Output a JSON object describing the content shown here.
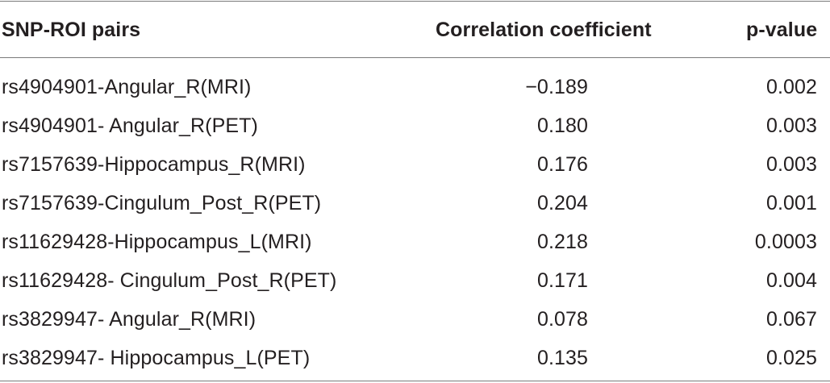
{
  "table": {
    "headers": {
      "pair": "SNP-ROI pairs",
      "correlation": "Correlation coefficient",
      "pvalue": "p-value"
    },
    "rows": [
      {
        "pair": "rs4904901-Angular_R(MRI)",
        "correlation": "−0.189",
        "pvalue": "0.002"
      },
      {
        "pair": "rs4904901- Angular_R(PET)",
        "correlation": "0.180",
        "pvalue": "0.003"
      },
      {
        "pair": "rs7157639-Hippocampus_R(MRI)",
        "correlation": "0.176",
        "pvalue": "0.003"
      },
      {
        "pair": "rs7157639-Cingulum_Post_R(PET)",
        "correlation": "0.204",
        "pvalue": "0.001"
      },
      {
        "pair": "rs11629428-Hippocampus_L(MRI)",
        "correlation": "0.218",
        "pvalue": "0.0003"
      },
      {
        "pair": "rs11629428- Cingulum_Post_R(PET)",
        "correlation": "0.171",
        "pvalue": "0.004"
      },
      {
        "pair": "rs3829947- Angular_R(MRI)",
        "correlation": "0.078",
        "pvalue": "0.067"
      },
      {
        "pair": "rs3829947- Hippocampus_L(PET)",
        "correlation": "0.135",
        "pvalue": "0.025"
      }
    ]
  }
}
